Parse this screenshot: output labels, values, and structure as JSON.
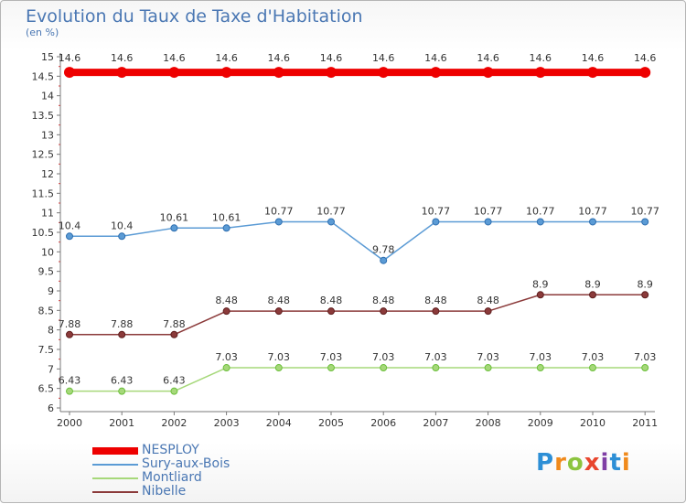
{
  "header": {
    "title": "Evolution du Taux de Taxe d'Habitation",
    "subtitle": "(en %)"
  },
  "brand": {
    "logo_text": "Proxiti",
    "logo_colors": [
      "#2d8fd6",
      "#f08a1c",
      "#8cc43f",
      "#e8462e",
      "#7f3fa5",
      "#2d8fd6",
      "#f08a1c"
    ]
  },
  "chart_data": {
    "type": "line",
    "title": "Evolution du Taux de Taxe d'Habitation",
    "subtitle": "(en %)",
    "xlabel": "",
    "ylabel": "",
    "x": [
      "2000",
      "2001",
      "2002",
      "2003",
      "2004",
      "2005",
      "2006",
      "2007",
      "2008",
      "2009",
      "2010",
      "2011"
    ],
    "ylim": [
      6,
      15
    ],
    "yticks": [
      "6",
      "6.5",
      "7",
      "7.5",
      "8",
      "8.5",
      "9",
      "9.5",
      "10",
      "10.5",
      "11",
      "11.5",
      "12",
      "12.5",
      "13",
      "13.5",
      "14",
      "14.5",
      "15"
    ],
    "grid": false,
    "legend_position": "bottom-left",
    "series": [
      {
        "name": "NESPLOY",
        "color": "#ee0000",
        "width": 8,
        "values": [
          14.6,
          14.6,
          14.6,
          14.6,
          14.6,
          14.6,
          14.6,
          14.6,
          14.6,
          14.6,
          14.6,
          14.6
        ],
        "labels": [
          "14.6",
          "14.6",
          "14.6",
          "14.6",
          "14.6",
          "14.6",
          "14.6",
          "14.6",
          "14.6",
          "14.6",
          "14.6",
          "14.6"
        ]
      },
      {
        "name": "Sury-aux-Bois",
        "color": "#5b9bd5",
        "point": "#2f6fb0",
        "width": 1.5,
        "values": [
          10.4,
          10.4,
          10.61,
          10.61,
          10.77,
          10.77,
          9.78,
          10.77,
          10.77,
          10.77,
          10.77,
          10.77
        ],
        "labels": [
          "10.4",
          "10.4",
          "10.61",
          "10.61",
          "10.77",
          "10.77",
          "9.78",
          "10.77",
          "10.77",
          "10.77",
          "10.77",
          "10.77"
        ]
      },
      {
        "name": "Montliard",
        "color": "#a6d87a",
        "point": "#6bbf3a",
        "width": 1.5,
        "values": [
          6.43,
          6.43,
          6.43,
          7.03,
          7.03,
          7.03,
          7.03,
          7.03,
          7.03,
          7.03,
          7.03,
          7.03
        ],
        "labels": [
          "6.43",
          "6.43",
          "6.43",
          "7.03",
          "7.03",
          "7.03",
          "7.03",
          "7.03",
          "7.03",
          "7.03",
          "7.03",
          "7.03"
        ]
      },
      {
        "name": "Nibelle",
        "color": "#8b3a3a",
        "point": "#5e1e1e",
        "width": 1.5,
        "values": [
          7.88,
          7.88,
          7.88,
          8.48,
          8.48,
          8.48,
          8.48,
          8.48,
          8.48,
          8.9,
          8.9,
          8.9
        ],
        "labels": [
          "7.88",
          "7.88",
          "7.88",
          "8.48",
          "8.48",
          "8.48",
          "8.48",
          "8.48",
          "8.48",
          "8.9",
          "8.9",
          "8.9"
        ]
      }
    ]
  }
}
